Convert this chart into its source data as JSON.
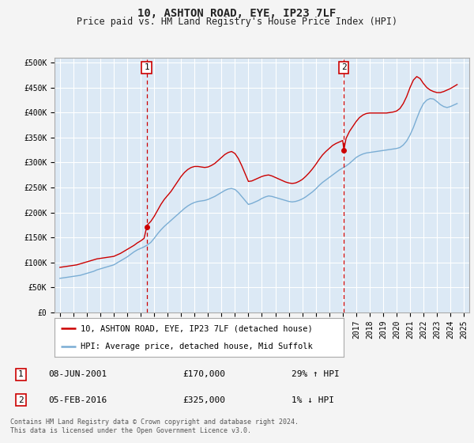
{
  "title": "10, ASHTON ROAD, EYE, IP23 7LF",
  "subtitle": "Price paid vs. HM Land Registry's House Price Index (HPI)",
  "background_color": "#f4f4f4",
  "plot_bg_color": "#dce9f5",
  "grid_color": "#ffffff",
  "sale1_date": "08-JUN-2001",
  "sale1_price": 170000,
  "sale1_hpi": "29% ↑ HPI",
  "sale1_x": 2001.44,
  "sale2_date": "05-FEB-2016",
  "sale2_price": 325000,
  "sale2_hpi": "1% ↓ HPI",
  "sale2_x": 2016.09,
  "legend_line1": "10, ASHTON ROAD, EYE, IP23 7LF (detached house)",
  "legend_line2": "HPI: Average price, detached house, Mid Suffolk",
  "footnote": "Contains HM Land Registry data © Crown copyright and database right 2024.\nThis data is licensed under the Open Government Licence v3.0.",
  "ylim": [
    0,
    510000
  ],
  "xlim_start": 1994.6,
  "xlim_end": 2025.4,
  "yticks": [
    0,
    50000,
    100000,
    150000,
    200000,
    250000,
    300000,
    350000,
    400000,
    450000,
    500000
  ],
  "ytick_labels": [
    "£0",
    "£50K",
    "£100K",
    "£150K",
    "£200K",
    "£250K",
    "£300K",
    "£350K",
    "£400K",
    "£450K",
    "£500K"
  ],
  "hpi_color": "#7aadd4",
  "price_color": "#cc0000",
  "vline_color": "#cc0000",
  "sale_marker_color": "#cc0000",
  "box_edge_color": "#cc0000",
  "title_fontsize": 10,
  "subtitle_fontsize": 8.5,
  "tick_fontsize": 7,
  "legend_fontsize": 7.5,
  "table_fontsize": 8,
  "footnote_fontsize": 6
}
